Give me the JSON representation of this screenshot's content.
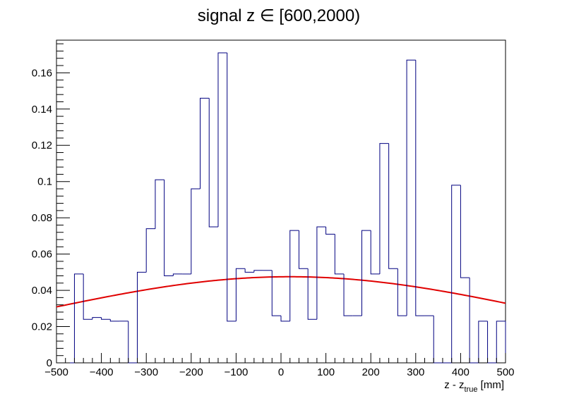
{
  "chart_data": {
    "type": "histogram",
    "title": "signal z ∈ [600,2000)",
    "xlabel": {
      "main": "z - z",
      "sub": "true",
      "unit": " [mm]"
    },
    "ylabel": "",
    "xlim": [
      -500,
      500
    ],
    "ylim": [
      0,
      0.178
    ],
    "x_ticks": [
      -500,
      -400,
      -300,
      -200,
      -100,
      0,
      100,
      200,
      300,
      400,
      500
    ],
    "x_tick_labels": [
      "−500",
      "−400",
      "−300",
      "−200",
      "−100",
      "0",
      "100",
      "200",
      "300",
      "400",
      "500"
    ],
    "y_ticks": [
      0,
      0.02,
      0.04,
      0.06,
      0.08,
      0.1,
      0.12,
      0.14,
      0.16
    ],
    "y_tick_labels": [
      "0",
      "0.02",
      "0.04",
      "0.06",
      "0.08",
      "0.1",
      "0.12",
      "0.14",
      "0.16"
    ],
    "bin_width": 20,
    "bin_edges_start": -500,
    "values": [
      0,
      0,
      0.049,
      0.024,
      0.025,
      0.024,
      0.023,
      0.023,
      0,
      0.05,
      0.074,
      0.101,
      0.048,
      0.049,
      0.049,
      0.096,
      0.146,
      0.075,
      0.171,
      0.023,
      0.052,
      0.05,
      0.051,
      0.051,
      0.026,
      0.023,
      0.073,
      0.052,
      0.024,
      0.075,
      0.071,
      0.049,
      0.026,
      0.026,
      0.073,
      0.049,
      0.121,
      0.052,
      0.026,
      0.167,
      0.026,
      0.026,
      0,
      0,
      0.098,
      0.047,
      0,
      0.023,
      0,
      0.023
    ],
    "fit": {
      "type": "gaussian",
      "amplitude": 0.0475,
      "mean": 20,
      "sigma": 560,
      "color": "#e00000"
    },
    "hist_color": "#000080",
    "grid": false,
    "legend": "none"
  }
}
